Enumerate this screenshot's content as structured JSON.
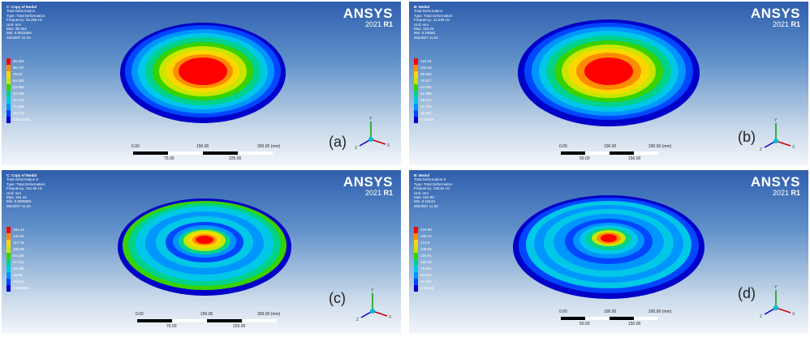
{
  "panels": [
    {
      "info": [
        "C: Copy of Modal",
        "Total Deformation",
        "Type: Total Deformation",
        "Frequency: 25.286 Hz",
        "Unit: mm",
        "Max: 96.454",
        "Min: 0.0015394",
        "2024/6/7 11:23"
      ],
      "legend": [
        "96.454",
        "85.737",
        "75.02",
        "64.303",
        "53.586",
        "42.069",
        "32.153",
        "21.435",
        "10.718",
        "0.0015394"
      ],
      "brand": "ANSYS",
      "version_year": "2021",
      "version_rel": "R1",
      "label": "(a)",
      "scale_ticks_top": [
        "0.00",
        "150.00",
        "300.00 (mm)"
      ],
      "scale_ticks_bottom": [
        "75.00",
        "225.00"
      ]
    },
    {
      "info": [
        "B: Modal",
        "Total Deformation",
        "Type: Total Deformation",
        "Frequency: 22.638 Hz",
        "Unit: mm",
        "Max: 115.23",
        "Min: 0.16065",
        "2024/6/7 11:24"
      ],
      "legend": [
        "115.23",
        "102.46",
        "89.693",
        "76.917",
        "64.091",
        "51.085",
        "38.519",
        "25.733",
        "12.947",
        "0.16065"
      ],
      "brand": "ANSYS",
      "version_year": "2021",
      "version_rel": "R1",
      "label": "(b)",
      "scale_ticks_top": [
        "0.00",
        "100.00",
        "200.00 (mm)"
      ],
      "scale_ticks_bottom": [
        "50.00",
        "150.00"
      ]
    },
    {
      "info": [
        "C: Copy of Modal",
        "Total Deformation 8",
        "Type: Total Deformation",
        "Frequency: 151.66 Hz",
        "Unit: mm",
        "Max: 151.44",
        "Min: 0.0005801",
        "2024/6/7 11:26"
      ],
      "legend": [
        "151.44",
        "134.61",
        "117.79",
        "100.96",
        "84.136",
        "67.311",
        "50.485",
        "33.66",
        "16.834",
        "0.0005801"
      ],
      "brand": "ANSYS",
      "version_year": "2021",
      "version_rel": "R1",
      "label": "(c)",
      "scale_ticks_top": [
        "0.00",
        "150.00",
        "300.00 (mm)"
      ],
      "scale_ticks_bottom": [
        "75.00",
        "225.00"
      ]
    },
    {
      "info": [
        "B: Modal",
        "Total Deformation 8",
        "Type: Total Deformation",
        "Frequency: 130.54 Hz",
        "Unit: mm",
        "Max: 224.89",
        "Min: 0.10144",
        "2024/6/7 11:26"
      ],
      "legend": [
        "224.89",
        "199.74",
        "174.6",
        "149.65",
        "124.91",
        "100.33",
        "75.816",
        "50.871",
        "25.126",
        "0.10144"
      ],
      "brand": "ANSYS",
      "version_year": "2021",
      "version_rel": "R1",
      "label": "(d)",
      "scale_ticks_top": [
        "0.00",
        "100.00",
        "200.00 (mm)"
      ],
      "scale_ticks_bottom": [
        "50.00",
        "150.00"
      ]
    }
  ],
  "triad_labels": {
    "x": "X",
    "y": "Y",
    "z": "Z"
  },
  "legend_colors": [
    "#ff0000",
    "#ff8c00",
    "#ffd700",
    "#c8e600",
    "#37d200",
    "#00d28c",
    "#00c8e6",
    "#0096ff",
    "#0046ff",
    "#0000c8"
  ],
  "triad_colors": {
    "x": "#d00000",
    "y": "#00a000",
    "z": "#0000d0"
  }
}
